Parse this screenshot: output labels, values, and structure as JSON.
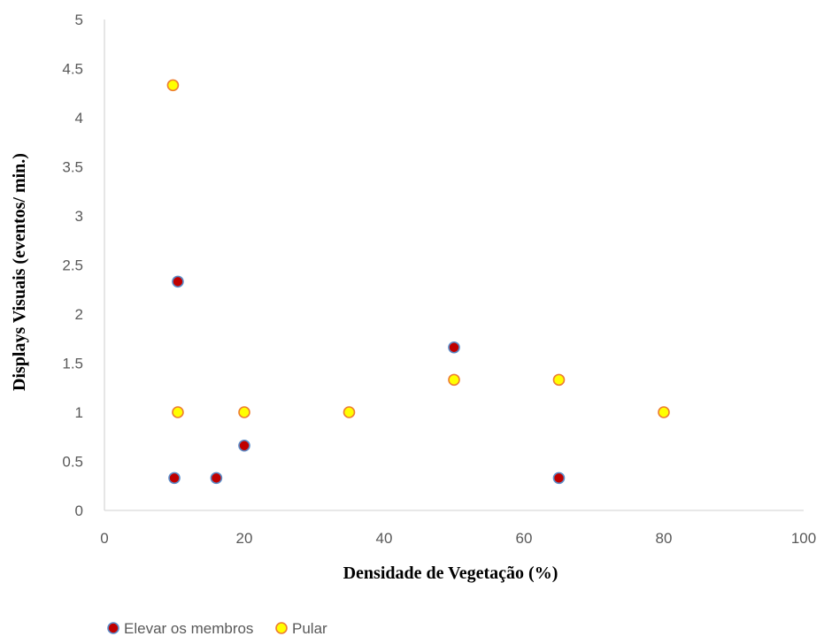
{
  "chart_data": {
    "type": "scatter",
    "title": "",
    "xlabel": "Densidade de Vegetação (%)",
    "ylabel": "Displays Visuais (eventos/ min.)",
    "xlim": [
      0,
      100
    ],
    "ylim": [
      0,
      5
    ],
    "xticks": [
      0,
      20,
      40,
      60,
      80,
      100
    ],
    "yticks": [
      0,
      0.5,
      1,
      1.5,
      2,
      2.5,
      3,
      3.5,
      4,
      4.5,
      5
    ],
    "grid": false,
    "legend_position": "bottom-left",
    "series": [
      {
        "name": "Elevar os membros",
        "fill": "#C00000",
        "stroke": "#5B8DC9",
        "points": [
          {
            "x": 10,
            "y": 0.33
          },
          {
            "x": 16,
            "y": 0.33
          },
          {
            "x": 10.5,
            "y": 2.33
          },
          {
            "x": 20,
            "y": 0.66
          },
          {
            "x": 50,
            "y": 1.66
          },
          {
            "x": 65,
            "y": 0.33
          }
        ]
      },
      {
        "name": "Pular",
        "fill": "#FFFF00",
        "stroke": "#ED7D31",
        "points": [
          {
            "x": 9.8,
            "y": 4.33
          },
          {
            "x": 10.5,
            "y": 1.0
          },
          {
            "x": 20,
            "y": 1.0
          },
          {
            "x": 35,
            "y": 1.0
          },
          {
            "x": 50,
            "y": 1.33
          },
          {
            "x": 65,
            "y": 1.33
          },
          {
            "x": 80,
            "y": 1.0
          }
        ]
      }
    ]
  },
  "colors": {
    "axis": "#D9D9D9",
    "tick_text": "#595959"
  }
}
